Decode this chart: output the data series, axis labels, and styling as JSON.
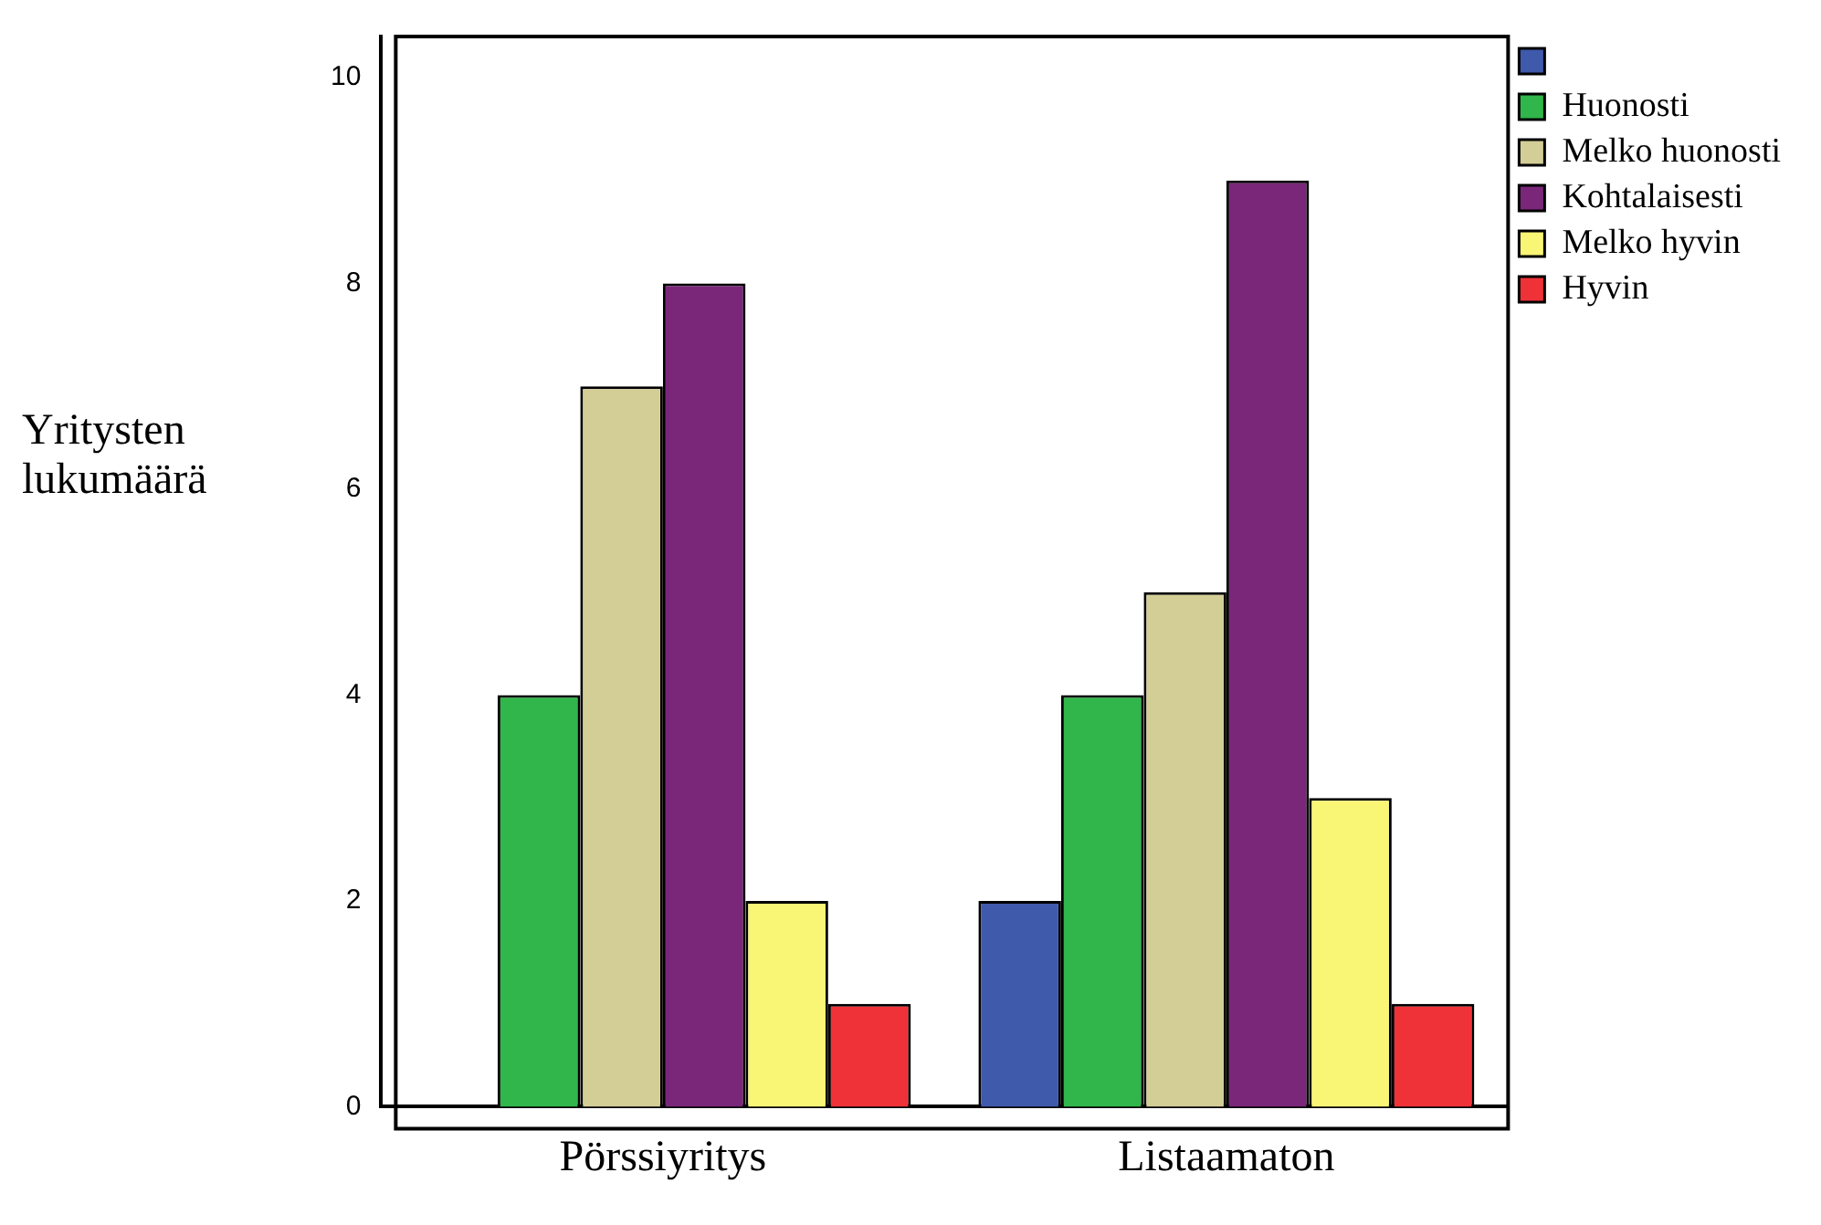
{
  "chart_data": {
    "type": "bar",
    "ylabel": "Yritysten lukumäärä",
    "categories": [
      "Pörssiyritys",
      "Listaamaton"
    ],
    "series": [
      {
        "color": "#3f59ab",
        "values": [
          null,
          2
        ]
      },
      {
        "name": "Huonosti",
        "color": "#30b64a",
        "values": [
          4,
          4
        ]
      },
      {
        "name": "Melko huonosti",
        "color": "#d3cd96",
        "values": [
          7,
          5
        ]
      },
      {
        "name": "Kohtalaisesti",
        "color": "#7a277a",
        "values": [
          8,
          9
        ]
      },
      {
        "name": "Melko hyvin",
        "color": "#f9f575",
        "values": [
          2,
          3
        ]
      },
      {
        "name": "Hyvin",
        "color": "#ee3237",
        "values": [
          1,
          1
        ]
      }
    ],
    "ylim": [
      0,
      10.4
    ],
    "yticks": [
      0,
      2,
      4,
      6,
      8,
      10
    ],
    "grid": false,
    "legend": "top right"
  }
}
